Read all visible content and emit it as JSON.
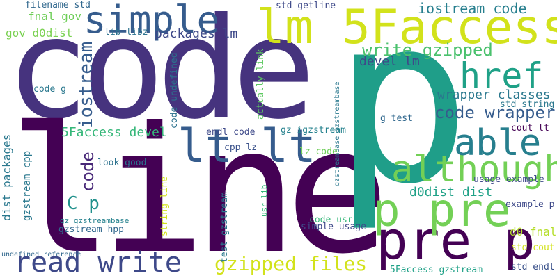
{
  "words": [
    {
      "id": "code",
      "text": "code",
      "color": "#46337e"
    },
    {
      "id": "line",
      "text": "line",
      "color": "#440154"
    },
    {
      "id": "p",
      "text": "p",
      "color": "#1f9e89"
    },
    {
      "id": "lm-5faccess",
      "text": "lm 5Faccess",
      "color": "#d2e21b"
    },
    {
      "id": "pre-p",
      "text": "pre p",
      "color": "#440154"
    },
    {
      "id": "p-pre",
      "text": "p pre",
      "color": "#73d056"
    },
    {
      "id": "simple",
      "text": "simple",
      "color": "#365c8d"
    },
    {
      "id": "lt-lt",
      "text": "lt lt",
      "color": "#365c8d"
    },
    {
      "id": "although",
      "text": "although",
      "color": "#73d056"
    },
    {
      "id": "able",
      "text": "able",
      "color": "#277f8e"
    },
    {
      "id": "href",
      "text": "href",
      "color": "#1fa187"
    },
    {
      "id": "read-write",
      "text": "read write",
      "color": "#3e4989"
    },
    {
      "id": "gzipped-files",
      "text": "gzipped files",
      "color": "#d2e21b"
    },
    {
      "id": "iostream-code",
      "text": "iostream code",
      "color": "#277f8e"
    },
    {
      "id": "write-gzipped",
      "text": "write gzipped",
      "color": "#4ac16d"
    },
    {
      "id": "iostream-v",
      "text": "iostream",
      "color": "#365c8d"
    },
    {
      "id": "code-v",
      "text": "code",
      "color": "#482878"
    },
    {
      "id": "code-wrapper",
      "text": "code wrapper",
      "color": "#365c8d"
    },
    {
      "id": "c-p",
      "text": "C p",
      "color": "#21918c"
    },
    {
      "id": "packages-lm",
      "text": "packages lm",
      "color": "#3e4989"
    },
    {
      "id": "devel-lm",
      "text": "devel lm",
      "color": "#3e4989"
    },
    {
      "id": "wrapper-classes",
      "text": "wrapper classes",
      "color": "#2a788e"
    },
    {
      "id": "5faccess-devel",
      "text": "5Faccess devel",
      "color": "#35b779"
    },
    {
      "id": "d0dist-dist",
      "text": "d0dist dist",
      "color": "#1fa187"
    },
    {
      "id": "fnal-gov",
      "text": "fnal gov",
      "color": "#6ece58"
    },
    {
      "id": "gov-d0dist",
      "text": "gov d0dist",
      "color": "#7ad151"
    },
    {
      "id": "filename-std",
      "text": "filename std",
      "color": "#31688e"
    },
    {
      "id": "std-getline",
      "text": "std getline",
      "color": "#3e4989"
    },
    {
      "id": "lib-libz",
      "text": "lib libz",
      "color": "#2c728e"
    },
    {
      "id": "code-g",
      "text": "code g",
      "color": "#2a788e"
    },
    {
      "id": "code-undefined",
      "text": "code undefined",
      "color": "#2c728e"
    },
    {
      "id": "actually-link",
      "text": "actually link",
      "color": "#5ec962"
    },
    {
      "id": "std-string",
      "text": "std string",
      "color": "#2a788e"
    },
    {
      "id": "g-test",
      "text": "g test",
      "color": "#31688e"
    },
    {
      "id": "gzstreambase-gzstreambase",
      "text": "gzstreambase gzstreambase",
      "color": "#2a788e"
    },
    {
      "id": "cout-lt",
      "text": "cout lt",
      "color": "#440154"
    },
    {
      "id": "endl-code",
      "text": "endl code",
      "color": "#3e4989"
    },
    {
      "id": "gz-igzstream",
      "text": "gz igzstream",
      "color": "#26828e"
    },
    {
      "id": "cpp-lz",
      "text": "cpp lz",
      "color": "#3b528b"
    },
    {
      "id": "lz-code",
      "text": "lz code",
      "color": "#6ece58"
    },
    {
      "id": "dist-packages",
      "text": "dist packages",
      "color": "#2a788e"
    },
    {
      "id": "gzstream-cpp",
      "text": "gzstream cpp",
      "color": "#2a788e"
    },
    {
      "id": "look-good",
      "text": "look good",
      "color": "#2c728e"
    },
    {
      "id": "string-line",
      "text": "string line",
      "color": "#d2e21b"
    },
    {
      "id": "usr-lib",
      "text": "usr lib",
      "color": "#35b779"
    },
    {
      "id": "usage-example",
      "text": "usage example",
      "color": "#3e4989"
    },
    {
      "id": "example-p",
      "text": "example p",
      "color": "#3e4989"
    },
    {
      "id": "gz-gzstreambase",
      "text": "gz gzstreambase",
      "color": "#26828e"
    },
    {
      "id": "gzstream-hpp",
      "text": "gzstream hpp",
      "color": "#31688e"
    },
    {
      "id": "test-gzstream",
      "text": "test gzstream",
      "color": "#2a788e"
    },
    {
      "id": "code-usr",
      "text": "code usr",
      "color": "#35b779"
    },
    {
      "id": "simple-usage",
      "text": "simple usage",
      "color": "#3e4989"
    },
    {
      "id": "d0-fnal",
      "text": "d0 fnal",
      "color": "#b5de2b"
    },
    {
      "id": "std-cout",
      "text": "std cout",
      "color": "#d2e21b"
    },
    {
      "id": "undefined-reference",
      "text": "undefined reference",
      "color": "#31688e"
    },
    {
      "id": "5faccess-gzstream",
      "text": "5Faccess gzstream",
      "color": "#1fa187"
    },
    {
      "id": "std-endl",
      "text": "std endl",
      "color": "#3b528b"
    }
  ]
}
